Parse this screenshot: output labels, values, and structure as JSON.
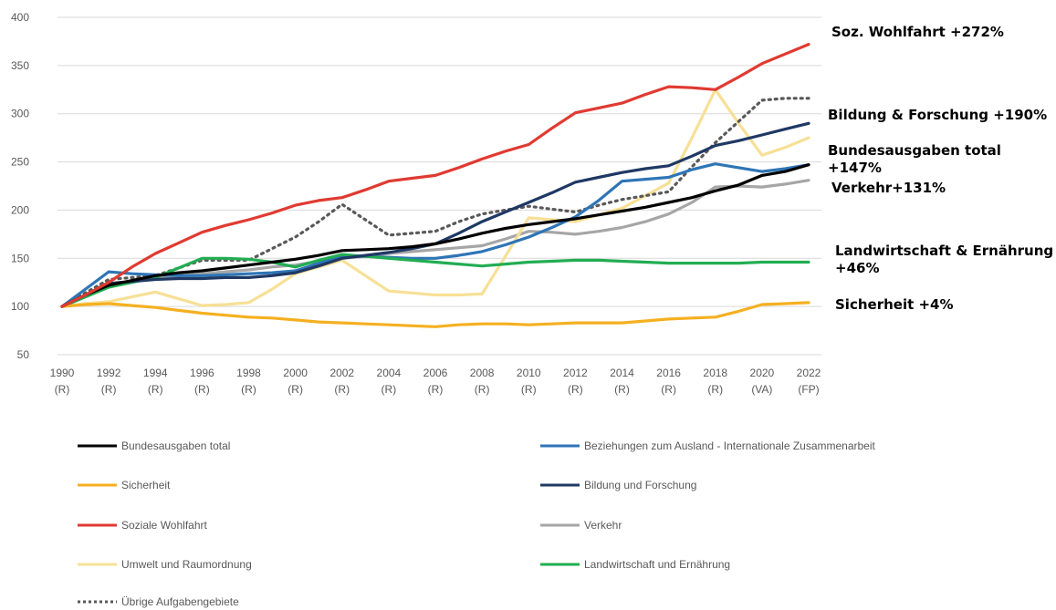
{
  "chart_data": {
    "type": "line",
    "title": "",
    "xlabel": "",
    "ylabel": "",
    "ylim": [
      50,
      400
    ],
    "y_ticks": [
      50,
      100,
      150,
      200,
      250,
      300,
      350,
      400
    ],
    "grid": true,
    "legend_placement": "bottom",
    "x": [
      1990,
      1991,
      1992,
      1993,
      1994,
      1995,
      1996,
      1997,
      1998,
      1999,
      2000,
      2001,
      2002,
      2003,
      2004,
      2005,
      2006,
      2007,
      2008,
      2009,
      2010,
      2011,
      2012,
      2013,
      2014,
      2015,
      2016,
      2017,
      2018,
      2019,
      2020,
      2021,
      2022
    ],
    "x_tick_labels": [
      {
        "year": "1990",
        "sub": "(R)"
      },
      {
        "year": "1992",
        "sub": "(R)"
      },
      {
        "year": "1994",
        "sub": "(R)"
      },
      {
        "year": "1996",
        "sub": "(R)"
      },
      {
        "year": "1998",
        "sub": "(R)"
      },
      {
        "year": "2000",
        "sub": "(R)"
      },
      {
        "year": "2002",
        "sub": "(R)"
      },
      {
        "year": "2004",
        "sub": "(R)"
      },
      {
        "year": "2006",
        "sub": "(R)"
      },
      {
        "year": "2008",
        "sub": "(R)"
      },
      {
        "year": "2010",
        "sub": "(R)"
      },
      {
        "year": "2012",
        "sub": "(R)"
      },
      {
        "year": "2014",
        "sub": "(R)"
      },
      {
        "year": "2016",
        "sub": "(R)"
      },
      {
        "year": "2018",
        "sub": "(R)"
      },
      {
        "year": "2020",
        "sub": "(VA)"
      },
      {
        "year": "2022",
        "sub": "(FP)"
      }
    ],
    "series": [
      {
        "name": "Bundesausgaben total",
        "color": "#000000",
        "dashed": false,
        "values": [
          100,
          112,
          122,
          127,
          132,
          135,
          137,
          140,
          143,
          146,
          149,
          153,
          158,
          159,
          160,
          162,
          165,
          170,
          176,
          181,
          185,
          188,
          191,
          195,
          199,
          203,
          208,
          213,
          220,
          226,
          236,
          240,
          247
        ]
      },
      {
        "name": "Beziehungen zum Ausland - Internationale Zusammenarbeit",
        "color": "#2e75b6",
        "dashed": false,
        "values": [
          100,
          118,
          136,
          134,
          133,
          132,
          132,
          133,
          134,
          135,
          137,
          145,
          152,
          152,
          151,
          150,
          150,
          153,
          157,
          164,
          172,
          182,
          193,
          210,
          230,
          232,
          234,
          242,
          248,
          244,
          240,
          243,
          247
        ]
      },
      {
        "name": "Sicherheit",
        "color": "#f5b021",
        "dashed": false,
        "values": [
          100,
          102,
          103,
          101,
          99,
          96,
          93,
          91,
          89,
          88,
          86,
          84,
          83,
          82,
          81,
          80,
          79,
          81,
          82,
          82,
          81,
          82,
          83,
          83,
          83,
          85,
          87,
          88,
          89,
          95,
          102,
          103,
          104
        ]
      },
      {
        "name": "Bildung und Forschung",
        "color": "#1f3864",
        "dashed": false,
        "values": [
          100,
          112,
          124,
          126,
          128,
          129,
          129,
          130,
          130,
          132,
          135,
          142,
          150,
          153,
          156,
          160,
          165,
          176,
          188,
          198,
          208,
          218,
          229,
          234,
          239,
          243,
          246,
          256,
          267,
          272,
          278,
          284,
          290
        ]
      },
      {
        "name": "Soziale Wohlfahrt",
        "color": "#e03a31",
        "dashed": false,
        "values": [
          100,
          112,
          125,
          141,
          155,
          166,
          177,
          184,
          190,
          197,
          205,
          210,
          213,
          221,
          230,
          233,
          236,
          244,
          253,
          261,
          268,
          285,
          301,
          306,
          311,
          320,
          328,
          327,
          325,
          338,
          352,
          362,
          372
        ]
      },
      {
        "name": "Verkehr",
        "color": "#a6a6a6",
        "dashed": false,
        "values": [
          100,
          112,
          122,
          126,
          129,
          132,
          134,
          136,
          138,
          141,
          143,
          147,
          150,
          152,
          155,
          157,
          159,
          161,
          163,
          170,
          178,
          177,
          175,
          178,
          182,
          188,
          196,
          208,
          224,
          225,
          224,
          227,
          231
        ]
      },
      {
        "name": "Umwelt und Raumordnung",
        "color": "#f7e096",
        "dashed": false,
        "values": [
          100,
          103,
          105,
          110,
          115,
          108,
          101,
          102,
          104,
          118,
          134,
          141,
          148,
          132,
          116,
          114,
          112,
          112,
          113,
          152,
          192,
          190,
          188,
          195,
          202,
          215,
          228,
          275,
          325,
          290,
          257,
          265,
          275
        ]
      },
      {
        "name": "Landwirtschaft und Ernährung",
        "color": "#22ad52",
        "dashed": false,
        "values": [
          100,
          110,
          120,
          125,
          130,
          140,
          150,
          150,
          149,
          146,
          141,
          148,
          154,
          152,
          150,
          148,
          146,
          144,
          142,
          144,
          146,
          147,
          148,
          148,
          147,
          146,
          145,
          145,
          145,
          145,
          146,
          146,
          146
        ]
      },
      {
        "name": "Übrige Aufgabengebiete",
        "color": "#595959",
        "dashed": true,
        "values": [
          100,
          114,
          128,
          130,
          132,
          140,
          148,
          148,
          148,
          160,
          172,
          188,
          206,
          190,
          174,
          176,
          178,
          188,
          196,
          200,
          204,
          201,
          198,
          205,
          211,
          215,
          219,
          245,
          270,
          292,
          314,
          316,
          316
        ]
      }
    ],
    "end_labels": [
      {
        "text": "Soz. Wohlfahrt +272%",
        "color": "#e03a31"
      },
      {
        "text": "Bildung & Forschung +190%",
        "color": "#1f3864"
      },
      {
        "text": "Bundesausgaben total",
        "text2": "+147%",
        "color": "#000000"
      },
      {
        "text": "Verkehr+131%",
        "color": "#a6a6a6"
      },
      {
        "text": "Landwirtschaft & Ernährung",
        "text2": "+46%",
        "color": "#22ad52"
      },
      {
        "text": "Sicherheit +4%",
        "color": "#c9c92a"
      }
    ]
  }
}
